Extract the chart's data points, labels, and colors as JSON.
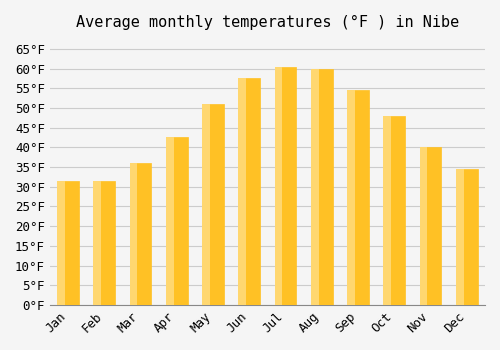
{
  "title": "Average monthly temperatures (°F ) in Nibe",
  "months": [
    "Jan",
    "Feb",
    "Mar",
    "Apr",
    "May",
    "Jun",
    "Jul",
    "Aug",
    "Sep",
    "Oct",
    "Nov",
    "Dec"
  ],
  "values": [
    31.5,
    31.5,
    36,
    42.5,
    51,
    57.5,
    60.5,
    60,
    54.5,
    48,
    40,
    34.5
  ],
  "bar_color_main": "#FFC125",
  "bar_color_light": "#FFD770",
  "ylim": [
    0,
    67
  ],
  "yticks": [
    0,
    5,
    10,
    15,
    20,
    25,
    30,
    35,
    40,
    45,
    50,
    55,
    60,
    65
  ],
  "background_color": "#F5F5F5",
  "grid_color": "#CCCCCC",
  "title_fontsize": 11,
  "tick_fontsize": 9,
  "font_family": "monospace"
}
